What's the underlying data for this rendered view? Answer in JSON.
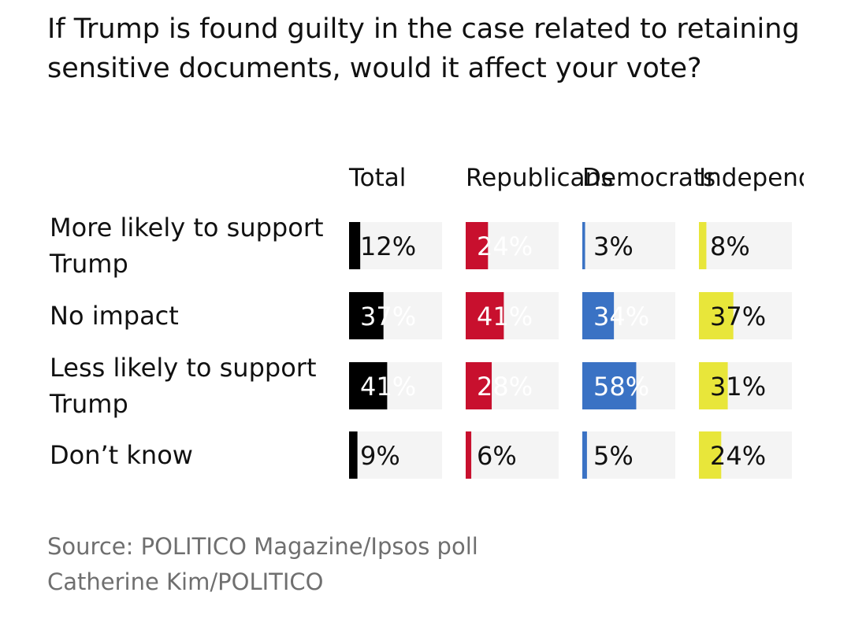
{
  "chart_data": {
    "type": "bar",
    "title": "If Trump is found guilty in the case related to retaining sensitive documents, would it affect your vote?",
    "categories": [
      "More likely to support Trump",
      "No impact",
      "Less likely to support Trump",
      "Don’t know"
    ],
    "ylim": [
      0,
      100
    ],
    "series": [
      {
        "name": "Total",
        "color": "#000000",
        "values": [
          12,
          37,
          41,
          9
        ]
      },
      {
        "name": "Republicans",
        "color": "#c8102e",
        "values": [
          24,
          41,
          28,
          6
        ]
      },
      {
        "name": "Democrats",
        "color": "#3a72c4",
        "values": [
          3,
          34,
          58,
          5
        ]
      },
      {
        "name": "Independents",
        "color": "#e8e63a",
        "values": [
          8,
          37,
          31,
          24
        ]
      }
    ],
    "value_suffix": "%",
    "track_color": "#f4f4f4"
  },
  "footer": {
    "source": "Source: POLITICO Magazine/Ipsos poll",
    "credit": "Catherine Kim/POLITICO"
  }
}
